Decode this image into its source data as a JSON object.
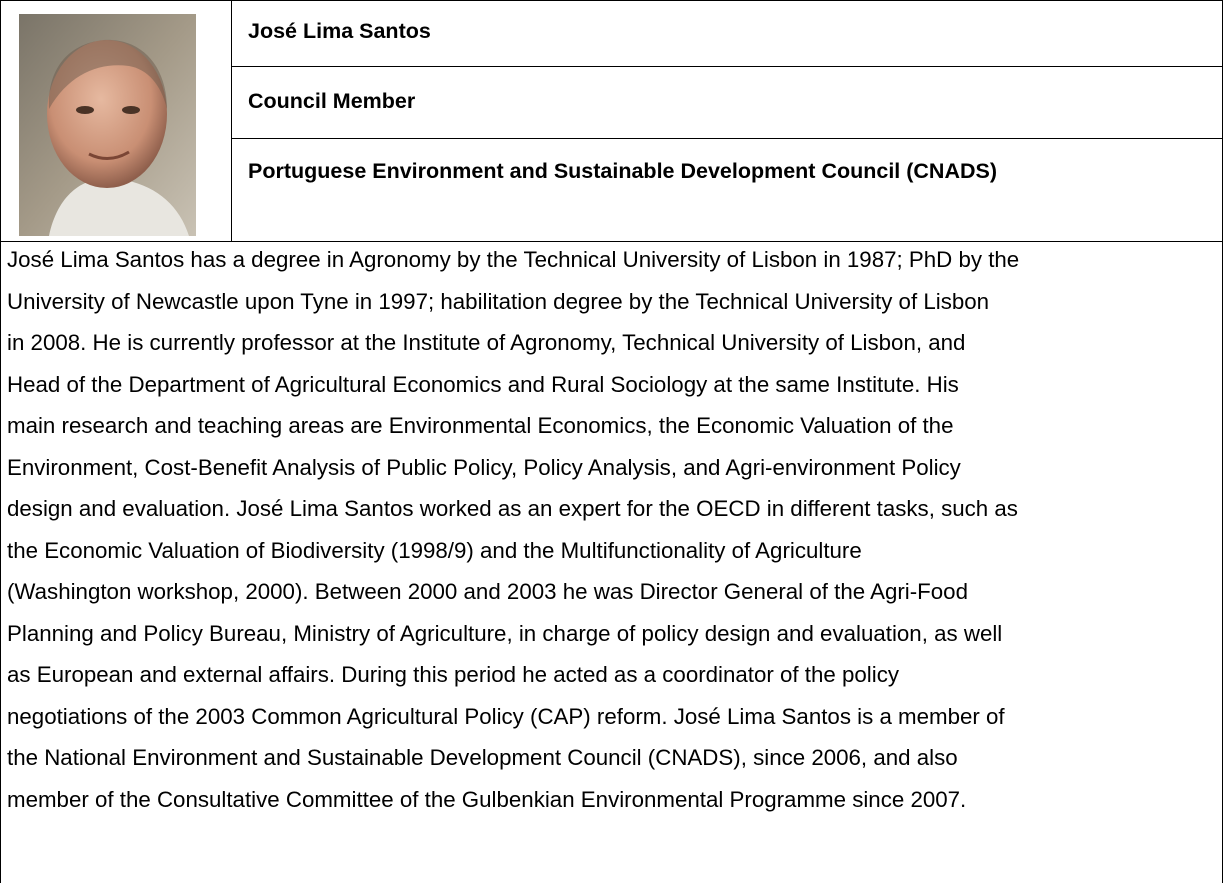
{
  "profile": {
    "name": "José Lima Santos",
    "role": "Council Member",
    "organization": "Portuguese Environment and Sustainable Development Council (CNADS)",
    "bio_lines": [
      "José Lima Santos has a degree in Agronomy by the Technical University of Lisbon in 1987; PhD by the",
      "University of Newcastle upon Tyne in 1997; habilitation degree by the Technical University of Lisbon",
      "in 2008. He is currently professor at the Institute of Agronomy, Technical University of Lisbon, and",
      "Head of the Department of Agricultural Economics and Rural Sociology at the same Institute. His",
      "main research and teaching areas are Environmental Economics, the Economic Valuation of the",
      "Environment, Cost-Benefit Analysis of Public Policy, Policy Analysis, and Agri-environment Policy",
      "design and evaluation. José Lima Santos worked as an expert for the OECD in different tasks, such as",
      "the Economic Valuation of Biodiversity (1998/9) and the Multifunctionality of Agriculture",
      "(Washington workshop, 2000). Between 2000 and 2003 he was Director General of the Agri-Food",
      "Planning and Policy Bureau, Ministry of Agriculture, in charge of policy design and evaluation, as well",
      "as European and external affairs. During this period he acted as a coordinator of the policy",
      "negotiations of the 2003 Common Agricultural Policy (CAP) reform. José Lima Santos is a member of",
      "the National Environment and Sustainable Development Council (CNADS), since 2006, and also",
      "member of the Consultative Committee of the Gulbenkian Environmental Programme since 2007."
    ]
  }
}
